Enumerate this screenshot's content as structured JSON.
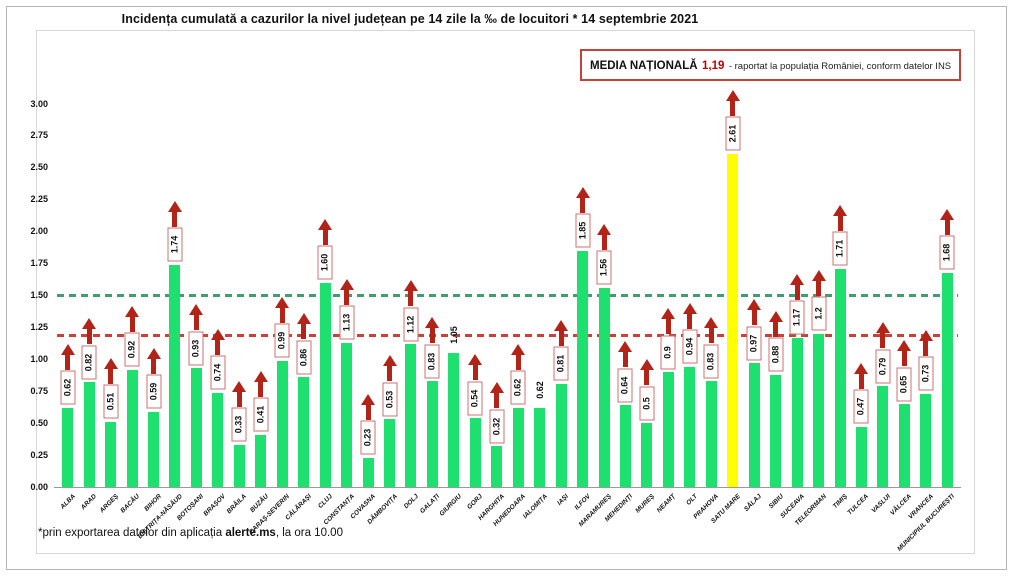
{
  "title": "Incidența cumulată a cazurilor la nivel județean pe 14 zile la ‰ de locuitori * 14 septembrie 2021",
  "national_average_box": {
    "label": "MEDIA NAȚIONALĂ",
    "value": "1,19",
    "description": "- raportat la populația României, conform datelor INS"
  },
  "footnote": {
    "prefix": "*prin exportarea datelor din aplicația ",
    "app_name": "alerte.ms",
    "suffix": ", la ora 10.00"
  },
  "colors": {
    "bar_green": "#1ee06e",
    "bar_highlight_yellow": "#ffff00",
    "arrow_red": "#b22318",
    "national_average_line_red": "#cc4136",
    "threshold_line_green": "#3f9e6f",
    "box_border_red": "#cc7070",
    "media_box_border": "#c4423c"
  },
  "chart_data": {
    "type": "bar",
    "title": "Incidența cumulată a cazurilor la nivel județean pe 14 zile la ‰ de locuitori * 14 septembrie 2021",
    "xlabel": "",
    "ylabel": "",
    "ylim": [
      0,
      3.0
    ],
    "grid": false,
    "legend": false,
    "bar_color": "#1ee06e",
    "highlight_color": "#ffff00",
    "yticks": [
      "3.00",
      "2.75",
      "2.50",
      "2.25",
      "2.00",
      "1.75",
      "1.50",
      "1.25",
      "1.00",
      "0.75",
      "0.50",
      "0.25",
      "0.00"
    ],
    "reference_lines": [
      {
        "name": "threshold-1-50",
        "value": 1.5,
        "color": "#3f9e6f",
        "style": "dashed"
      },
      {
        "name": "media-nationala",
        "value": 1.19,
        "color": "#cc4136",
        "style": "dashed"
      }
    ],
    "points": [
      {
        "county": "ALBA",
        "value": 0.62,
        "label": "0.62",
        "arrow": true,
        "boxed": true,
        "highlight": false
      },
      {
        "county": "ARAD",
        "value": 0.82,
        "label": "0.82",
        "arrow": true,
        "boxed": true,
        "highlight": false
      },
      {
        "county": "ARGEȘ",
        "value": 0.51,
        "label": "0.51",
        "arrow": true,
        "boxed": true,
        "highlight": false
      },
      {
        "county": "BACĂU",
        "value": 0.92,
        "label": "0.92",
        "arrow": true,
        "boxed": true,
        "highlight": false
      },
      {
        "county": "BIHOR",
        "value": 0.59,
        "label": "0.59",
        "arrow": true,
        "boxed": true,
        "highlight": false
      },
      {
        "county": "BISTRIȚA-NĂSĂUD",
        "value": 1.74,
        "label": "1.74",
        "arrow": true,
        "boxed": true,
        "highlight": false
      },
      {
        "county": "BOTOȘANI",
        "value": 0.93,
        "label": "0.93",
        "arrow": true,
        "boxed": true,
        "highlight": false
      },
      {
        "county": "BRAȘOV",
        "value": 0.74,
        "label": "0.74",
        "arrow": true,
        "boxed": true,
        "highlight": false
      },
      {
        "county": "BRĂILA",
        "value": 0.33,
        "label": "0.33",
        "arrow": true,
        "boxed": true,
        "highlight": false
      },
      {
        "county": "BUZĂU",
        "value": 0.41,
        "label": "0.41",
        "arrow": true,
        "boxed": true,
        "highlight": false
      },
      {
        "county": "CARAȘ-SEVERIN",
        "value": 0.99,
        "label": "0.99",
        "arrow": true,
        "boxed": true,
        "highlight": false
      },
      {
        "county": "CĂLĂRAȘI",
        "value": 0.86,
        "label": "0.86",
        "arrow": true,
        "boxed": true,
        "highlight": false
      },
      {
        "county": "CLUJ",
        "value": 1.6,
        "label": "1.60",
        "arrow": true,
        "boxed": true,
        "highlight": false
      },
      {
        "county": "CONSTANȚA",
        "value": 1.13,
        "label": "1.13",
        "arrow": true,
        "boxed": true,
        "highlight": false
      },
      {
        "county": "COVASNA",
        "value": 0.23,
        "label": "0.23",
        "arrow": true,
        "boxed": true,
        "highlight": false
      },
      {
        "county": "DÂMBOVIȚA",
        "value": 0.53,
        "label": "0.53",
        "arrow": true,
        "boxed": true,
        "highlight": false
      },
      {
        "county": "DOLJ",
        "value": 1.12,
        "label": "1.12",
        "arrow": true,
        "boxed": true,
        "highlight": false
      },
      {
        "county": "GALAȚI",
        "value": 0.83,
        "label": "0.83",
        "arrow": true,
        "boxed": true,
        "highlight": false
      },
      {
        "county": "GIURGIU",
        "value": 1.05,
        "label": "1.05",
        "arrow": false,
        "boxed": false,
        "highlight": false
      },
      {
        "county": "GORJ",
        "value": 0.54,
        "label": "0.54",
        "arrow": true,
        "boxed": true,
        "highlight": false
      },
      {
        "county": "HARGHITA",
        "value": 0.32,
        "label": "0.32",
        "arrow": true,
        "boxed": true,
        "highlight": false
      },
      {
        "county": "HUNEDOARA",
        "value": 0.62,
        "label": "0.62",
        "arrow": true,
        "boxed": true,
        "highlight": false
      },
      {
        "county": "IALOMIȚA",
        "value": 0.62,
        "label": "0.62",
        "arrow": false,
        "boxed": false,
        "highlight": false
      },
      {
        "county": "IAȘI",
        "value": 0.81,
        "label": "0.81",
        "arrow": true,
        "boxed": true,
        "highlight": false
      },
      {
        "county": "ILFOV",
        "value": 1.85,
        "label": "1.85",
        "arrow": true,
        "boxed": true,
        "highlight": false
      },
      {
        "county": "MARAMUREȘ",
        "value": 1.56,
        "label": "1.56",
        "arrow": true,
        "boxed": true,
        "highlight": false
      },
      {
        "county": "MEHEDINȚI",
        "value": 0.64,
        "label": "0.64",
        "arrow": true,
        "boxed": true,
        "highlight": false
      },
      {
        "county": "MUREȘ",
        "value": 0.5,
        "label": "0.5",
        "arrow": true,
        "boxed": true,
        "highlight": false
      },
      {
        "county": "NEAMȚ",
        "value": 0.9,
        "label": "0.9",
        "arrow": true,
        "boxed": true,
        "highlight": false
      },
      {
        "county": "OLT",
        "value": 0.94,
        "label": "0.94",
        "arrow": true,
        "boxed": true,
        "highlight": false
      },
      {
        "county": "PRAHOVA",
        "value": 0.83,
        "label": "0.83",
        "arrow": true,
        "boxed": true,
        "highlight": false
      },
      {
        "county": "SATU MARE",
        "value": 2.61,
        "label": "2.61",
        "arrow": true,
        "boxed": true,
        "highlight": true
      },
      {
        "county": "SĂLAJ",
        "value": 0.97,
        "label": "0.97",
        "arrow": true,
        "boxed": true,
        "highlight": false
      },
      {
        "county": "SIBIU",
        "value": 0.88,
        "label": "0.88",
        "arrow": true,
        "boxed": true,
        "highlight": false
      },
      {
        "county": "SUCEAVA",
        "value": 1.17,
        "label": "1.17",
        "arrow": true,
        "boxed": true,
        "highlight": false
      },
      {
        "county": "TELEORMAN",
        "value": 1.2,
        "label": "1.2",
        "arrow": true,
        "boxed": true,
        "highlight": false
      },
      {
        "county": "TIMIȘ",
        "value": 1.71,
        "label": "1.71",
        "arrow": true,
        "boxed": true,
        "highlight": false
      },
      {
        "county": "TULCEA",
        "value": 0.47,
        "label": "0.47",
        "arrow": true,
        "boxed": true,
        "highlight": false
      },
      {
        "county": "VASLUI",
        "value": 0.79,
        "label": "0.79",
        "arrow": true,
        "boxed": true,
        "highlight": false
      },
      {
        "county": "VÂLCEA",
        "value": 0.65,
        "label": "0.65",
        "arrow": true,
        "boxed": true,
        "highlight": false
      },
      {
        "county": "VRANCEA",
        "value": 0.73,
        "label": "0.73",
        "arrow": true,
        "boxed": true,
        "highlight": false
      },
      {
        "county": "MUNICIPIUL BUCUREȘTI",
        "value": 1.68,
        "label": "1.68",
        "arrow": true,
        "boxed": true,
        "highlight": false
      }
    ]
  }
}
